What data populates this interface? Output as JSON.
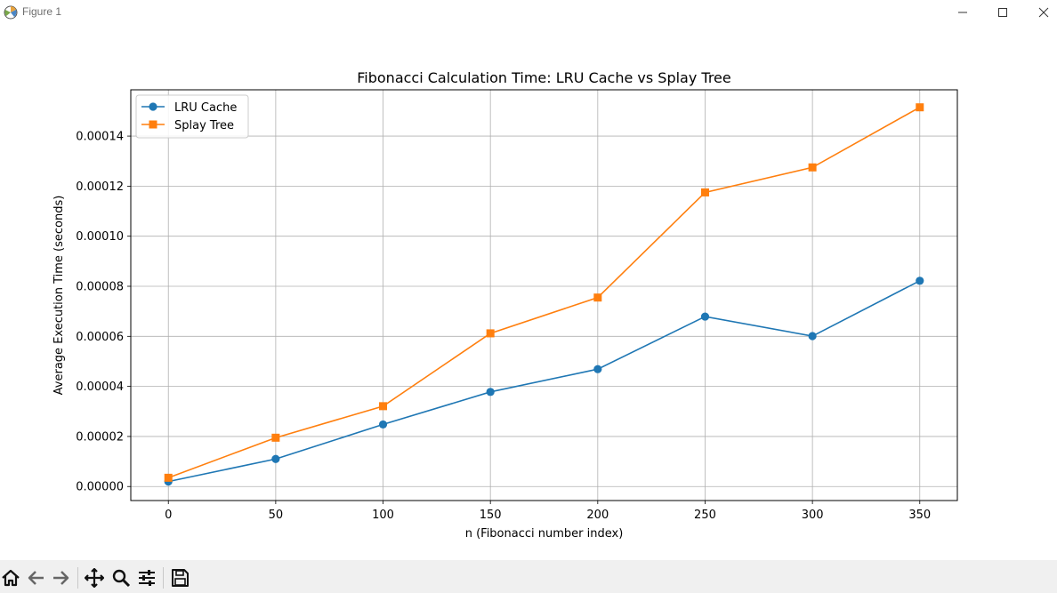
{
  "window": {
    "title": "Figure 1",
    "minimize_icon": "minimize-icon",
    "maximize_icon": "maximize-icon",
    "close_icon": "close-icon"
  },
  "toolbar": {
    "buttons": [
      {
        "name": "home-button",
        "icon": "home-icon"
      },
      {
        "name": "back-button",
        "icon": "arrow-left-icon"
      },
      {
        "name": "forward-button",
        "icon": "arrow-right-icon"
      },
      {
        "name": "pan-button",
        "icon": "move-icon"
      },
      {
        "name": "zoom-button",
        "icon": "zoom-icon"
      },
      {
        "name": "configure-subplots-button",
        "icon": "sliders-icon"
      },
      {
        "name": "save-button",
        "icon": "save-icon"
      }
    ]
  },
  "chart_data": {
    "type": "line",
    "title": "Fibonacci Calculation Time: LRU Cache vs Splay Tree",
    "xlabel": "n (Fibonacci number index)",
    "ylabel": "Average Execution Time (seconds)",
    "x": [
      0,
      50,
      100,
      150,
      200,
      250,
      300,
      350
    ],
    "xlim": [
      -17.5,
      367.5
    ],
    "ylim": [
      -5.6e-06,
      0.0001585
    ],
    "xticks": [
      0,
      50,
      100,
      150,
      200,
      250,
      300,
      350
    ],
    "xtick_labels": [
      "0",
      "50",
      "100",
      "150",
      "200",
      "250",
      "300",
      "350"
    ],
    "yticks": [
      0,
      2e-05,
      4e-05,
      6e-05,
      8e-05,
      0.0001,
      0.00012,
      0.00014
    ],
    "ytick_labels": [
      "0.00000",
      "0.00002",
      "0.00004",
      "0.00006",
      "0.00008",
      "0.00010",
      "0.00012",
      "0.00014"
    ],
    "grid": true,
    "legend_position": "top-left",
    "series": [
      {
        "name": "LRU Cache",
        "marker": "circle",
        "color": "#1f77b4",
        "values": [
          2e-06,
          1.1e-05,
          2.48e-05,
          3.78e-05,
          4.69e-05,
          6.79e-05,
          6.01e-05,
          8.22e-05
        ]
      },
      {
        "name": "Splay Tree",
        "marker": "square",
        "color": "#ff7f0e",
        "values": [
          3.5e-06,
          1.95e-05,
          3.21e-05,
          6.12e-05,
          7.55e-05,
          0.0001175,
          0.0001275,
          0.0001515
        ]
      }
    ]
  }
}
